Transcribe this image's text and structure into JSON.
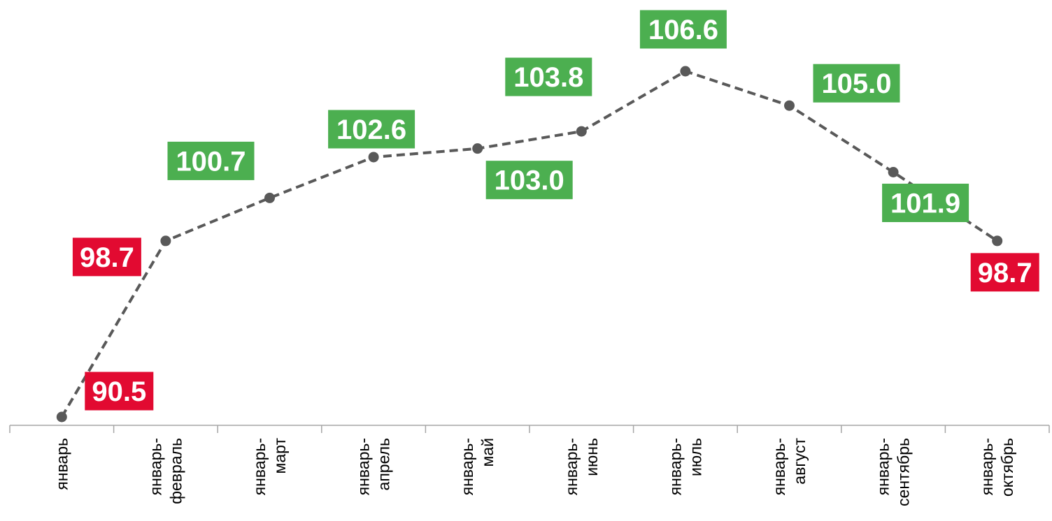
{
  "chart_data": {
    "type": "line",
    "categories": [
      [
        "январь"
      ],
      [
        "январь-",
        "февраль"
      ],
      [
        "январь-",
        "март"
      ],
      [
        "январь-",
        "апрель"
      ],
      [
        "январь-",
        "май"
      ],
      [
        "январь-",
        "июнь"
      ],
      [
        "январь-",
        "июль"
      ],
      [
        "январь-",
        "август"
      ],
      [
        "январь-",
        "сентябрь"
      ],
      [
        "январь-",
        "октябрь"
      ]
    ],
    "values": [
      90.5,
      98.7,
      100.7,
      102.6,
      103.0,
      103.8,
      106.6,
      105.0,
      101.9,
      98.7
    ],
    "labels": [
      "90.5",
      "98.7",
      "100.7",
      "102.6",
      "103.0",
      "103.8",
      "106.6",
      "105.0",
      "101.9",
      "98.7"
    ],
    "label_colors": [
      "#e20a31",
      "#e20a31",
      "#4caf50",
      "#4caf50",
      "#4caf50",
      "#4caf50",
      "#4caf50",
      "#4caf50",
      "#4caf50",
      "#e20a31"
    ],
    "ylim": [
      90.5,
      106.6
    ],
    "line_color": "#595959",
    "line_style": "dashed",
    "marker_color": "#595959",
    "threshold": 100
  }
}
